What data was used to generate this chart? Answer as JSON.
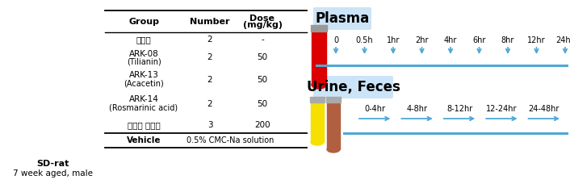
{
  "rat_text_line1": "SD-rat",
  "rat_text_line2": "7 week aged, male",
  "table_headers": [
    "Group",
    "Number",
    "Dose\n(mg/kg)"
  ],
  "table_rows": [
    [
      "대조군",
      "2",
      "-"
    ],
    [
      "ARK-08\n(Tilianin)",
      "2",
      "50"
    ],
    [
      "ARK-13\n(Acacetin)",
      "2",
      "50"
    ],
    [
      "ARK-14\n(Rosmarinic acid)",
      "2",
      "50"
    ],
    [
      "배초향 추출물",
      "3",
      "200"
    ]
  ],
  "vehicle_row": [
    "Vehicle",
    "0.5% CMC-Na solution"
  ],
  "plasma_label": "Plasma",
  "plasma_timepoints": [
    "0",
    "0.5h",
    "1hr",
    "2hr",
    "4hr",
    "6hr",
    "8hr",
    "12hr",
    "24hr"
  ],
  "urine_label": "Urine, Feces",
  "urine_intervals": [
    "0-4hr",
    "4-8hr",
    "8-12hr",
    "12-24hr",
    "24-48hr"
  ],
  "label_bg_color": "#cce4f7",
  "arrow_color": "#4fa8d5",
  "line_color": "#4fa8d5",
  "header_fontsize": 8,
  "cell_fontsize": 7.5,
  "label_fontsize": 12
}
